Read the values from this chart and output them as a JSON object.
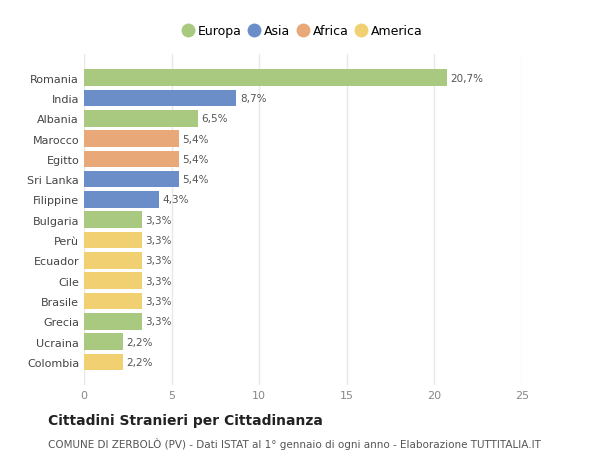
{
  "countries": [
    "Romania",
    "India",
    "Albania",
    "Marocco",
    "Egitto",
    "Sri Lanka",
    "Filippine",
    "Bulgaria",
    "Perù",
    "Ecuador",
    "Cile",
    "Brasile",
    "Grecia",
    "Ucraina",
    "Colombia"
  ],
  "values": [
    20.7,
    8.7,
    6.5,
    5.4,
    5.4,
    5.4,
    4.3,
    3.3,
    3.3,
    3.3,
    3.3,
    3.3,
    3.3,
    2.2,
    2.2
  ],
  "labels": [
    "20,7%",
    "8,7%",
    "6,5%",
    "5,4%",
    "5,4%",
    "5,4%",
    "4,3%",
    "3,3%",
    "3,3%",
    "3,3%",
    "3,3%",
    "3,3%",
    "3,3%",
    "2,2%",
    "2,2%"
  ],
  "continents": [
    "Europa",
    "Asia",
    "Europa",
    "Africa",
    "Africa",
    "Asia",
    "Asia",
    "Europa",
    "America",
    "America",
    "America",
    "America",
    "Europa",
    "Europa",
    "America"
  ],
  "continent_colors": {
    "Europa": "#a8c97f",
    "Asia": "#6b8ec9",
    "Africa": "#e8a878",
    "America": "#f0d070"
  },
  "legend_order": [
    "Europa",
    "Asia",
    "Africa",
    "America"
  ],
  "title": "Cittadini Stranieri per Cittadinanza",
  "subtitle": "COMUNE DI ZERBOLÒ (PV) - Dati ISTAT al 1° gennaio di ogni anno - Elaborazione TUTTITALIA.IT",
  "xlim": [
    0,
    25
  ],
  "xticks": [
    0,
    5,
    10,
    15,
    20,
    25
  ],
  "background_color": "#ffffff",
  "bar_height": 0.82,
  "grid_color": "#e8e8e8",
  "title_fontsize": 10,
  "subtitle_fontsize": 7.5,
  "label_fontsize": 7.5,
  "tick_fontsize": 8,
  "legend_fontsize": 9
}
